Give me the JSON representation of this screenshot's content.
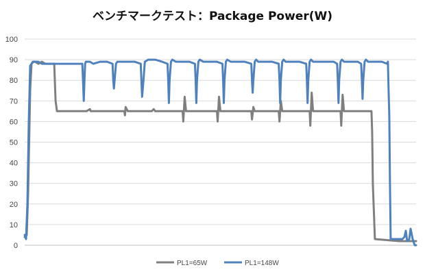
{
  "chart_data": {
    "type": "line",
    "title": "ベンチマークテスト：Package Power(W)",
    "xlabel": "",
    "ylabel": "",
    "ylim": [
      0,
      100
    ],
    "yticks": [
      0,
      10,
      20,
      30,
      40,
      50,
      60,
      70,
      80,
      90,
      100
    ],
    "xlim": [
      0,
      570
    ],
    "grid": "horizontal",
    "legend_position": "bottom",
    "colors": {
      "PL1=65W": "#7f7f7f",
      "PL1=148W": "#4f81bd"
    },
    "series": [
      {
        "name": "PL1=65W",
        "color": "#7f7f7f",
        "x": [
          0,
          3,
          5,
          8,
          10,
          13,
          15,
          20,
          25,
          30,
          34,
          37,
          40,
          43,
          45,
          47,
          50,
          55,
          60,
          65,
          70,
          75,
          80,
          90,
          95,
          96,
          98,
          100,
          110,
          120,
          130,
          140,
          145,
          146,
          147,
          150,
          160,
          170,
          185,
          188,
          190,
          200,
          210,
          230,
          231,
          233,
          235,
          250,
          270,
          280,
          281,
          283,
          285,
          300,
          310,
          330,
          331,
          333,
          335,
          360,
          370,
          371,
          373,
          375,
          400,
          410,
          415,
          416,
          418,
          420,
          440,
          460,
          461,
          463,
          465,
          490,
          500,
          505,
          506,
          507,
          510,
          545,
          570
        ],
        "values": [
          4,
          5,
          25,
          75,
          88,
          89,
          89,
          88,
          89,
          88,
          88,
          88,
          88,
          88,
          70,
          65,
          65,
          65,
          65,
          65,
          65,
          65,
          65,
          65,
          66,
          65,
          65,
          65,
          65,
          65,
          65,
          65,
          65,
          63,
          67,
          65,
          65,
          65,
          65,
          66,
          65,
          65,
          65,
          65,
          60,
          72,
          65,
          65,
          65,
          65,
          60,
          72,
          65,
          65,
          65,
          65,
          61,
          67,
          65,
          65,
          65,
          60,
          70,
          65,
          65,
          65,
          65,
          58,
          74,
          65,
          65,
          65,
          58,
          73,
          65,
          65,
          65,
          65,
          55,
          30,
          3,
          2,
          2
        ]
      },
      {
        "name": "PL1=148W",
        "color": "#4f81bd",
        "x": [
          0,
          2,
          4,
          6,
          8,
          10,
          12,
          15,
          20,
          25,
          30,
          35,
          40,
          45,
          46,
          47,
          48,
          50,
          55,
          60,
          65,
          70,
          75,
          80,
          84,
          85,
          86,
          87,
          88,
          89,
          90,
          95,
          100,
          110,
          120,
          128,
          129,
          130,
          131,
          133,
          135,
          140,
          150,
          160,
          169,
          170,
          171,
          173,
          175,
          180,
          190,
          200,
          208,
          209,
          210,
          211,
          213,
          215,
          220,
          230,
          240,
          248,
          249,
          250,
          251,
          253,
          255,
          260,
          270,
          280,
          288,
          289,
          290,
          291,
          293,
          295,
          300,
          310,
          320,
          330,
          331,
          332,
          333,
          335,
          337,
          340,
          350,
          360,
          370,
          371,
          372,
          373,
          375,
          377,
          380,
          390,
          400,
          410,
          411,
          412,
          413,
          415,
          417,
          420,
          430,
          440,
          450,
          455,
          456,
          457,
          458,
          460,
          462,
          465,
          475,
          485,
          490,
          491,
          492,
          493,
          495,
          497,
          500,
          510,
          520,
          528,
          529,
          530,
          531,
          532,
          533,
          534,
          535,
          536,
          537,
          538,
          539,
          540,
          545,
          550,
          553,
          555,
          557,
          560,
          562,
          565,
          567,
          568,
          570
        ],
        "values": [
          5,
          3,
          20,
          60,
          87,
          88,
          89,
          89,
          89,
          88,
          88,
          88,
          88,
          88,
          88,
          88,
          88,
          88,
          88,
          88,
          88,
          88,
          88,
          88,
          88,
          80,
          70,
          80,
          88,
          89,
          89,
          89,
          88,
          89,
          89,
          88,
          80,
          76,
          80,
          88,
          89,
          89,
          89,
          89,
          88,
          80,
          72,
          80,
          89,
          90,
          90,
          89,
          88,
          80,
          69,
          80,
          89,
          90,
          89,
          89,
          89,
          88,
          80,
          69,
          80,
          89,
          90,
          89,
          89,
          89,
          88,
          80,
          69,
          80,
          89,
          90,
          89,
          89,
          89,
          88,
          80,
          74,
          80,
          89,
          90,
          89,
          89,
          89,
          88,
          80,
          69,
          80,
          89,
          90,
          89,
          89,
          89,
          88,
          80,
          69,
          80,
          89,
          90,
          89,
          89,
          89,
          89,
          88,
          80,
          69,
          80,
          89,
          90,
          89,
          89,
          89,
          88,
          80,
          71,
          80,
          89,
          90,
          89,
          89,
          89,
          88,
          89,
          75,
          63,
          30,
          3,
          3,
          3,
          3,
          3,
          3,
          3,
          3,
          3,
          3,
          4,
          7,
          2,
          3,
          8,
          3,
          1,
          0,
          0
        ]
      }
    ]
  }
}
